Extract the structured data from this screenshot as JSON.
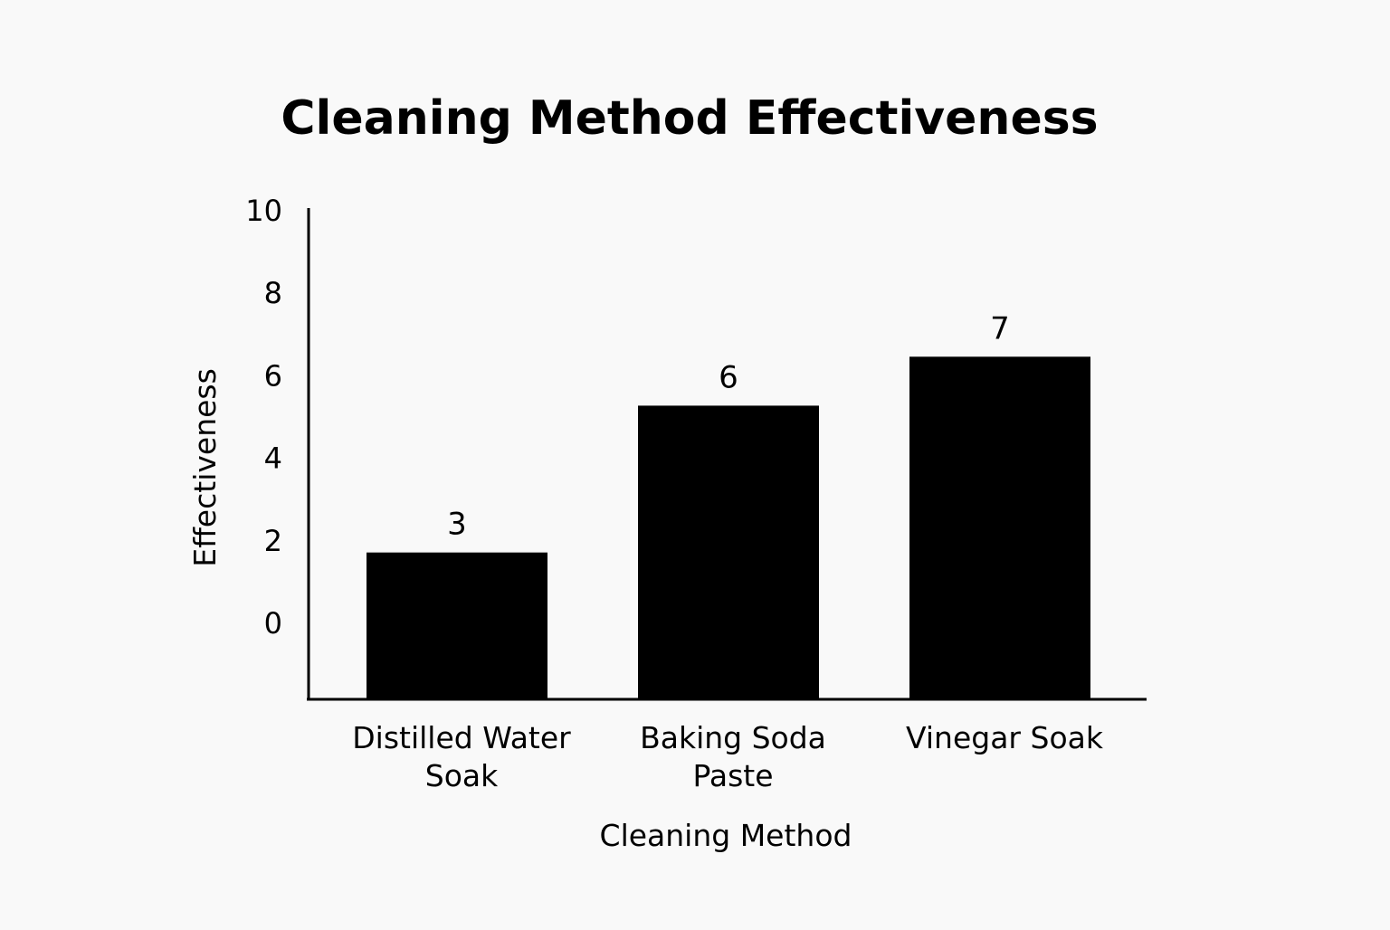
{
  "chart_data": {
    "type": "bar",
    "title": "Cleaning Method Effectiveness",
    "xlabel": "Cleaning Method",
    "ylabel": "Effectiveness",
    "categories": [
      [
        "Distilled Water",
        "Soak"
      ],
      [
        "Baking Soda",
        "Paste"
      ],
      [
        "Vinegar Soak"
      ]
    ],
    "values": [
      3,
      6,
      7
    ],
    "data_labels": [
      "3",
      "6",
      "7"
    ],
    "y_ticks": [
      "0",
      "2",
      "4",
      "6",
      "8",
      "10"
    ],
    "ylim": [
      0,
      10
    ],
    "grid": false,
    "legend": "none",
    "colors": {
      "bar": "#000000",
      "background": "#f9f9f9",
      "text": "#000000"
    }
  }
}
